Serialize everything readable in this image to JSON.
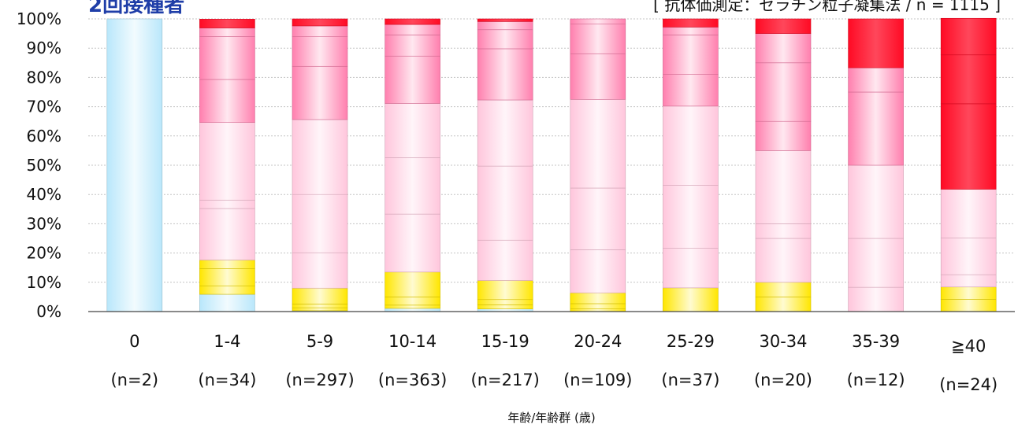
{
  "chart_data": {
    "type": "bar",
    "stacked": true,
    "title": "2回接種者",
    "subtitle": "[ 抗体価測定：ゼラチン粒子凝集法 / n = 1115 ]",
    "xlabel": "年齢/年齢群 (歳)",
    "ylabel": "",
    "ylim": [
      0,
      100
    ],
    "y_ticks": [
      "0%",
      "10%",
      "20%",
      "30%",
      "40%",
      "50%",
      "60%",
      "70%",
      "80%",
      "90%",
      "100%"
    ],
    "grid": true,
    "categories": [
      "0",
      "1-4",
      "5-9",
      "10-14",
      "15-19",
      "20-24",
      "25-29",
      "30-34",
      "35-39",
      "≧40"
    ],
    "n_labels": [
      "(n=2)",
      "(n=34)",
      "(n=297)",
      "(n=363)",
      "(n=217)",
      "(n=109)",
      "(n=37)",
      "(n=20)",
      "(n=12)",
      "(n=24)"
    ],
    "bars": [
      [
        {
          "value": 100,
          "color": "blue"
        }
      ],
      [
        {
          "value": 5.9,
          "color": "blue"
        },
        {
          "value": 2.9,
          "color": "yellow"
        },
        {
          "value": 5.9,
          "color": "yellow"
        },
        {
          "value": 2.9,
          "color": "yellow"
        },
        {
          "value": 17.6,
          "color": "pink"
        },
        {
          "value": 2.9,
          "color": "pink"
        },
        {
          "value": 26.5,
          "color": "pink"
        },
        {
          "value": 14.7,
          "color": "rose"
        },
        {
          "value": 14.7,
          "color": "rose"
        },
        {
          "value": 2.9,
          "color": "rose"
        },
        {
          "value": 3.0,
          "color": "red"
        }
      ],
      [
        {
          "value": 0.3,
          "color": "blue"
        },
        {
          "value": 1.0,
          "color": "yellow"
        },
        {
          "value": 1.3,
          "color": "yellow"
        },
        {
          "value": 5.4,
          "color": "yellow"
        },
        {
          "value": 12.1,
          "color": "pink"
        },
        {
          "value": 19.9,
          "color": "pink"
        },
        {
          "value": 25.6,
          "color": "pink"
        },
        {
          "value": 18.2,
          "color": "rose"
        },
        {
          "value": 10.1,
          "color": "rose"
        },
        {
          "value": 3.7,
          "color": "rose"
        },
        {
          "value": 2.4,
          "color": "red"
        }
      ],
      [
        {
          "value": 1.1,
          "color": "blue"
        },
        {
          "value": 1.1,
          "color": "yellow"
        },
        {
          "value": 2.8,
          "color": "yellow"
        },
        {
          "value": 8.5,
          "color": "yellow"
        },
        {
          "value": 19.8,
          "color": "pink"
        },
        {
          "value": 19.3,
          "color": "pink"
        },
        {
          "value": 18.5,
          "color": "pink"
        },
        {
          "value": 16.2,
          "color": "rose"
        },
        {
          "value": 7.2,
          "color": "rose"
        },
        {
          "value": 3.6,
          "color": "rose"
        },
        {
          "value": 1.9,
          "color": "red"
        }
      ],
      [
        {
          "value": 0.9,
          "color": "blue"
        },
        {
          "value": 1.4,
          "color": "yellow"
        },
        {
          "value": 1.8,
          "color": "yellow"
        },
        {
          "value": 6.5,
          "color": "yellow"
        },
        {
          "value": 13.8,
          "color": "pink"
        },
        {
          "value": 25.3,
          "color": "pink"
        },
        {
          "value": 22.6,
          "color": "pink"
        },
        {
          "value": 17.5,
          "color": "rose"
        },
        {
          "value": 6.5,
          "color": "rose"
        },
        {
          "value": 2.8,
          "color": "rose"
        },
        {
          "value": 0.9,
          "color": "red"
        }
      ],
      [
        {
          "value": 0.9,
          "color": "yellow"
        },
        {
          "value": 1.8,
          "color": "yellow"
        },
        {
          "value": 3.7,
          "color": "yellow"
        },
        {
          "value": 14.7,
          "color": "pink"
        },
        {
          "value": 21.1,
          "color": "pink"
        },
        {
          "value": 30.3,
          "color": "pink"
        },
        {
          "value": 15.6,
          "color": "rose"
        },
        {
          "value": 10.1,
          "color": "rose"
        },
        {
          "value": 1.8,
          "color": "rose"
        }
      ],
      [
        {
          "value": 8.1,
          "color": "yellow"
        },
        {
          "value": 13.5,
          "color": "pink"
        },
        {
          "value": 21.6,
          "color": "pink"
        },
        {
          "value": 27.0,
          "color": "pink"
        },
        {
          "value": 10.8,
          "color": "rose"
        },
        {
          "value": 13.5,
          "color": "rose"
        },
        {
          "value": 2.7,
          "color": "rose"
        },
        {
          "value": 2.8,
          "color": "red"
        }
      ],
      [
        {
          "value": 5.0,
          "color": "yellow"
        },
        {
          "value": 5.0,
          "color": "yellow"
        },
        {
          "value": 15.0,
          "color": "pink"
        },
        {
          "value": 5.0,
          "color": "pink"
        },
        {
          "value": 25.0,
          "color": "pink"
        },
        {
          "value": 10.0,
          "color": "rose"
        },
        {
          "value": 20.0,
          "color": "rose"
        },
        {
          "value": 10.0,
          "color": "rose"
        },
        {
          "value": 5.0,
          "color": "red"
        }
      ],
      [
        {
          "value": 8.3,
          "color": "pink"
        },
        {
          "value": 16.7,
          "color": "pink"
        },
        {
          "value": 25.0,
          "color": "pink"
        },
        {
          "value": 25.0,
          "color": "rose"
        },
        {
          "value": 8.3,
          "color": "rose"
        },
        {
          "value": 16.7,
          "color": "red"
        }
      ],
      [
        {
          "value": 4.2,
          "color": "yellow"
        },
        {
          "value": 4.2,
          "color": "yellow"
        },
        {
          "value": 4.2,
          "color": "pink"
        },
        {
          "value": 12.5,
          "color": "pink"
        },
        {
          "value": 16.7,
          "color": "pink"
        },
        {
          "value": 29.2,
          "color": "red"
        },
        {
          "value": 16.7,
          "color": "red"
        },
        {
          "value": 12.5,
          "color": "red"
        }
      ]
    ],
    "colors": {
      "blue": "#b9e7fb",
      "yellow": "#ffe600",
      "pink": "#ffc6dc",
      "rose": "#ff7fae",
      "red": "#ff0a24",
      "title": "#1f3ea8"
    }
  }
}
